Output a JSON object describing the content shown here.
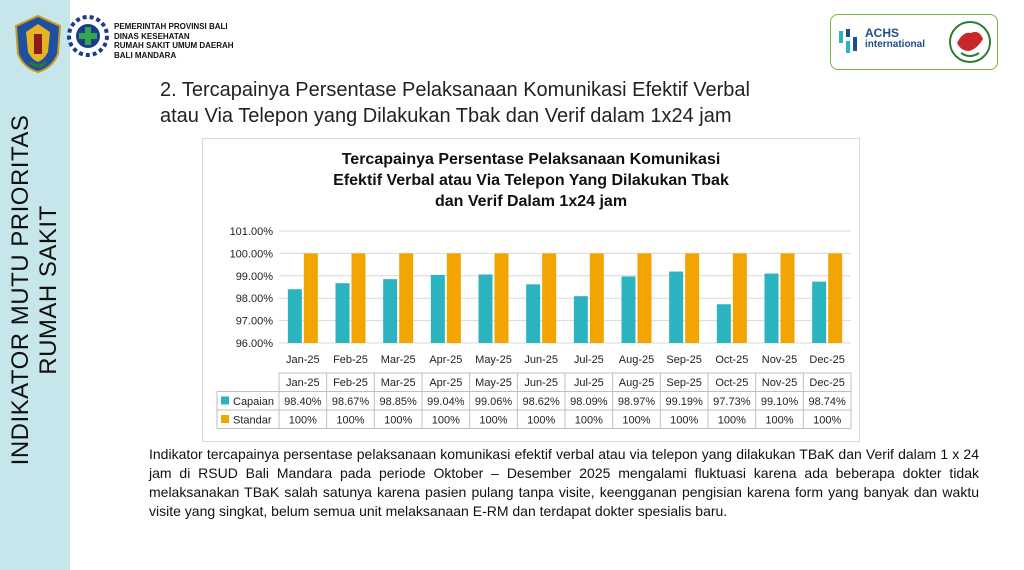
{
  "sidebar": {
    "line1": "INDIKATOR MUTU PRIORITAS",
    "line2": "RUMAH SAKIT"
  },
  "header": {
    "org_lines": [
      "PEMERINTAH PROVINSI BALI",
      "DINAS KESEHATAN",
      "RUMAH SAKIT UMUM DAERAH",
      "BALI MANDARA"
    ],
    "accreditation_line1": "ACHS",
    "accreditation_line2": "international"
  },
  "slide": {
    "heading_line1": "2. Tercapainya Persentase Pelaksanaan Komunikasi Efektif Verbal",
    "heading_line2": "atau Via Telepon yang Dilakukan Tbak dan Verif dalam 1x24 jam",
    "description": "Indikator tercapainya persentase pelaksanaan komunikasi efektif verbal atau via telepon yang dilakukan TBaK dan Verif dalam 1 x 24 jam di RSUD Bali Mandara pada periode Oktober – Desember 2025 mengalami fluktuasi karena ada beberapa dokter tidak melaksanakan TBaK salah satunya karena pasien pulang tanpa visite, keengganan pengisian karena form yang banyak dan waktu visite yang singkat, belum semua unit melaksanaan E-RM dan terdapat dokter spesialis baru."
  },
  "colors": {
    "capaian": "#2bb3bf",
    "standar": "#f2a500",
    "sidebar": "#c7e6ec"
  },
  "chart_data": {
    "type": "bar",
    "title_lines": [
      "Tercapainya Persentase Pelaksanaan Komunikasi",
      "Efektif Verbal atau Via Telepon Yang Dilakukan Tbak",
      "dan Verif Dalam 1x24 jam"
    ],
    "categories": [
      "Jan-25",
      "Feb-25",
      "Mar-25",
      "Apr-25",
      "May-25",
      "Jun-25",
      "Jul-25",
      "Aug-25",
      "Sep-25",
      "Oct-25",
      "Nov-25",
      "Dec-25"
    ],
    "series": [
      {
        "name": "Capaian",
        "values": [
          98.4,
          98.67,
          98.85,
          99.04,
          99.06,
          98.62,
          98.09,
          98.97,
          99.19,
          97.73,
          99.1,
          98.74
        ],
        "labels": [
          "98.40%",
          "98.67%",
          "98.85%",
          "99.04%",
          "99.06%",
          "98.62%",
          "98.09%",
          "98.97%",
          "99.19%",
          "97.73%",
          "99.10%",
          "98.74%"
        ]
      },
      {
        "name": "Standar",
        "values": [
          100,
          100,
          100,
          100,
          100,
          100,
          100,
          100,
          100,
          100,
          100,
          100
        ],
        "labels": [
          "100%",
          "100%",
          "100%",
          "100%",
          "100%",
          "100%",
          "100%",
          "100%",
          "100%",
          "100%",
          "100%",
          "100%"
        ]
      }
    ],
    "ylim": [
      96,
      101
    ],
    "yticks": [
      "96.00%",
      "97.00%",
      "98.00%",
      "99.00%",
      "100.00%",
      "101.00%"
    ],
    "grid": true,
    "data_table": true
  }
}
